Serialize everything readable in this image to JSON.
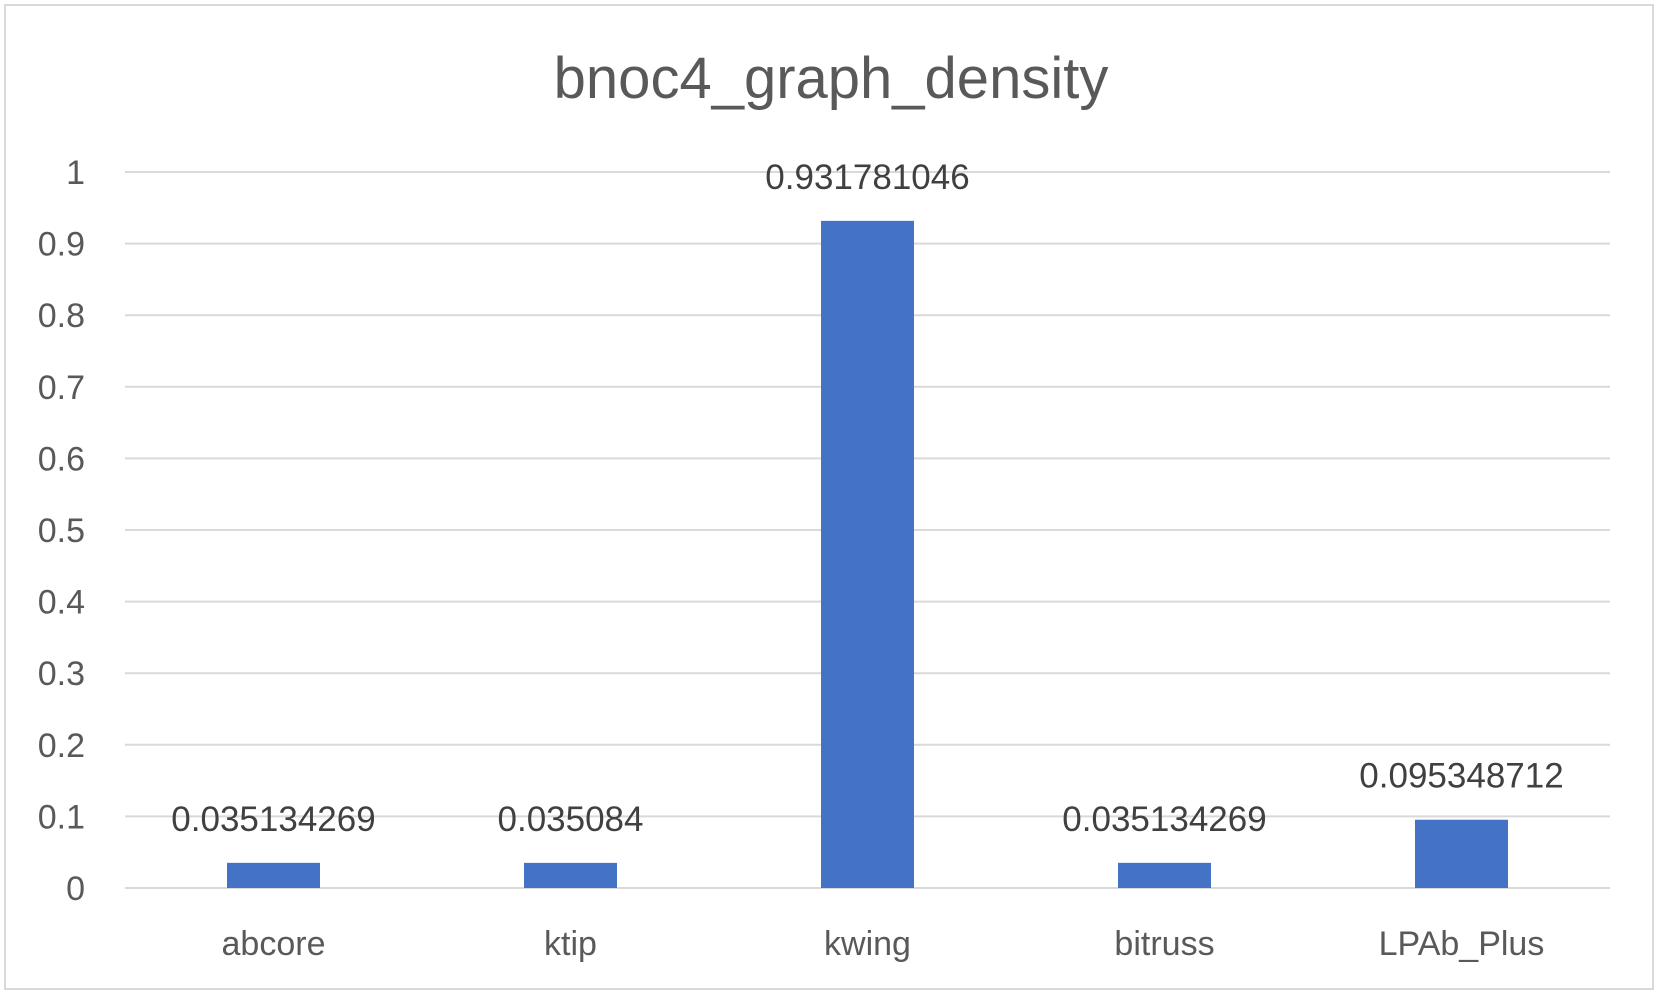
{
  "chart_data": {
    "type": "bar",
    "title": "bnoc4_graph_density",
    "xlabel": "",
    "ylabel": "",
    "categories": [
      "abcore",
      "ktip",
      "kwing",
      "bitruss",
      "LPAb_Plus"
    ],
    "values": [
      0.035134269,
      0.035084,
      0.931781046,
      0.035134269,
      0.095348712
    ],
    "data_labels": [
      "0.035134269",
      "0.035084",
      "0.931781046",
      "0.035134269",
      "0.095348712"
    ],
    "ylim": [
      0,
      1
    ],
    "yticks": [
      "0",
      "0.1",
      "0.2",
      "0.3",
      "0.4",
      "0.5",
      "0.6",
      "0.7",
      "0.8",
      "0.9",
      "1"
    ],
    "grid": true,
    "legend": "none",
    "bar_color": "#4472c4"
  }
}
